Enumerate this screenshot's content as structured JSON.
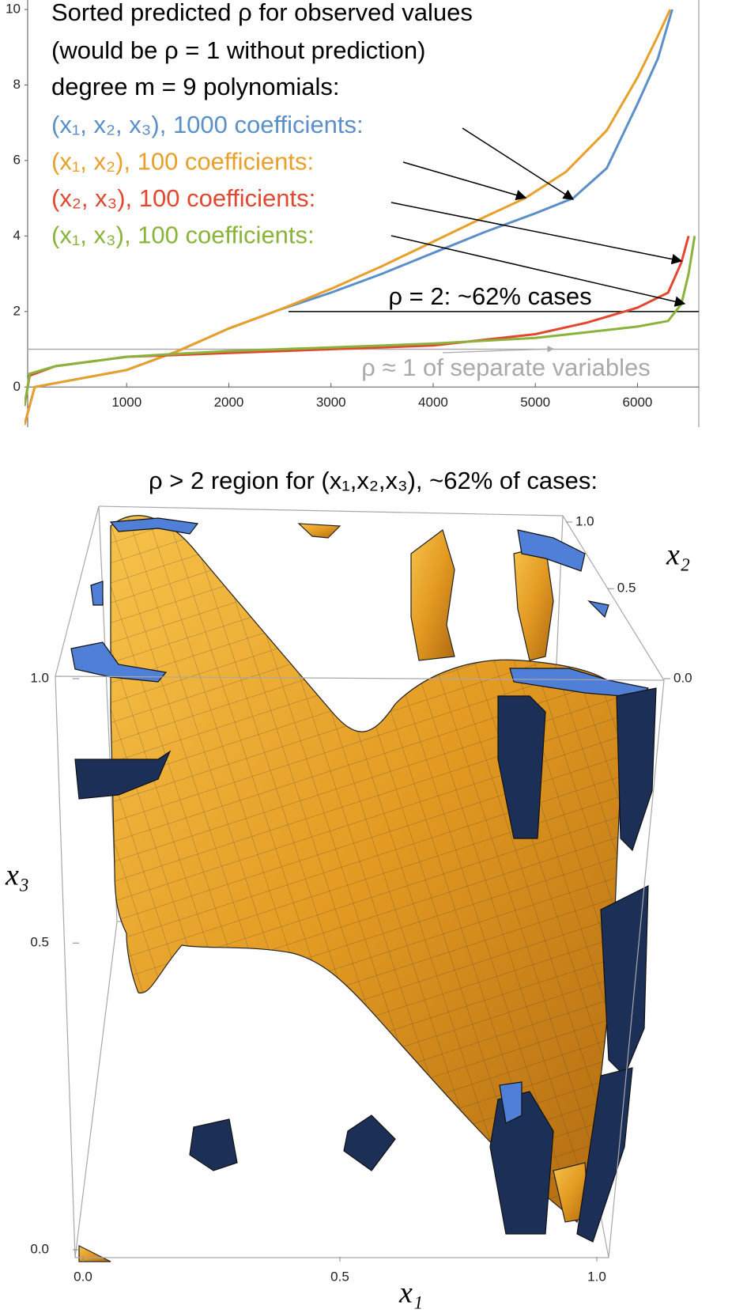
{
  "chart_data": [
    {
      "type": "line",
      "title": "Sorted predicted ρ for observed values",
      "subtitle": "(would be ρ = 1 without prediction)",
      "legend_title": "degree m = 9 polynomials:",
      "xlim": [
        0,
        6600
      ],
      "ylim": [
        -1,
        10
      ],
      "xticks": [
        1000,
        2000,
        3000,
        4000,
        5000,
        6000
      ],
      "yticks": [
        0,
        2,
        4,
        6,
        8,
        10
      ],
      "series": [
        {
          "name": "(x₁, x₂, x₃), 1000 coefficients:",
          "color": "#5b8fc9",
          "x": [
            0,
            100,
            500,
            1000,
            1500,
            2000,
            2500,
            3000,
            3500,
            4000,
            4500,
            5000,
            5370,
            5700,
            6000,
            6200,
            6340
          ],
          "values": [
            -1,
            0,
            0.2,
            0.45,
            0.95,
            1.55,
            2.05,
            2.5,
            3.0,
            3.55,
            4.1,
            4.6,
            5.0,
            5.8,
            7.5,
            8.7,
            10
          ]
        },
        {
          "name": "(x₁, x₂), 100 coefficients:",
          "color": "#e8a02a",
          "x": [
            0,
            100,
            500,
            1000,
            1500,
            2000,
            2500,
            3000,
            3500,
            4000,
            4500,
            4900,
            5300,
            5700,
            6000,
            6200,
            6320
          ],
          "values": [
            -1,
            0,
            0.2,
            0.45,
            0.95,
            1.55,
            2.05,
            2.6,
            3.2,
            3.85,
            4.5,
            5.0,
            5.7,
            6.8,
            8.2,
            9.3,
            10
          ]
        },
        {
          "name": "(x₂, x₃), 100 coefficients:",
          "color": "#e4472f",
          "x": [
            0,
            50,
            300,
            1000,
            1500,
            2000,
            3000,
            4000,
            5000,
            5500,
            6000,
            6300,
            6430,
            6500
          ],
          "values": [
            -0.5,
            0.3,
            0.55,
            0.8,
            0.85,
            0.9,
            1.0,
            1.1,
            1.4,
            1.7,
            2.1,
            2.5,
            3.3,
            4.0
          ]
        },
        {
          "name": "(x₁, x₃), 100 coefficients:",
          "color": "#8ab33b",
          "x": [
            0,
            50,
            300,
            1000,
            1500,
            2000,
            3000,
            4000,
            5000,
            5500,
            6000,
            6300,
            6430,
            6500,
            6560
          ],
          "values": [
            -0.5,
            0.35,
            0.55,
            0.8,
            0.88,
            0.95,
            1.05,
            1.15,
            1.3,
            1.45,
            1.6,
            1.75,
            2.2,
            3.0,
            4.0
          ]
        }
      ],
      "hlines": [
        {
          "y": 2,
          "label": "ρ = 2: ~62% cases",
          "color": "#000000"
        },
        {
          "y": 1,
          "label": "ρ ≈ 1  of separate variables",
          "color": "#aaaaaa"
        }
      ]
    },
    {
      "type": "region3d",
      "title": "ρ > 2 region for (x₁,x₂,x₃), ~62% of cases:",
      "xlabel": "x₁",
      "ylabel": "x₂",
      "zlabel": "x₃",
      "xlim": [
        0,
        1
      ],
      "ylim": [
        0,
        1
      ],
      "zlim": [
        0,
        1
      ],
      "xticks": [
        {
          "value": 0,
          "label": "0.0"
        },
        0.5,
        {
          "value": 1,
          "label": "1.0"
        }
      ],
      "yticks": [
        {
          "value": 0,
          "label": "0.0"
        },
        0.5,
        {
          "value": 1,
          "label": "1.0"
        }
      ],
      "zticks": [
        {
          "value": 0,
          "label": "0.0"
        },
        0.5,
        {
          "value": 1,
          "label": "1.0"
        }
      ]
    }
  ]
}
